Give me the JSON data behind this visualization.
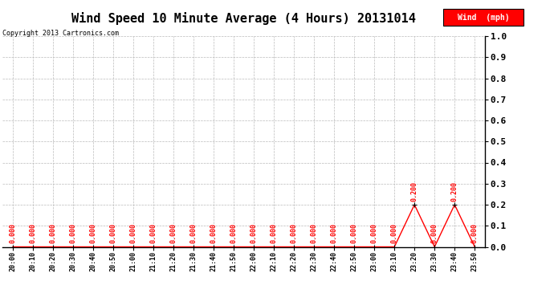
{
  "title": "Wind Speed 10 Minute Average (4 Hours) 20131014",
  "copyright_text": "Copyright 2013 Cartronics.com",
  "legend_label": "Wind  (mph)",
  "legend_bg": "#ff0000",
  "legend_fg": "#ffffff",
  "x_labels": [
    "20:00",
    "20:10",
    "20:20",
    "20:30",
    "20:40",
    "20:50",
    "21:00",
    "21:10",
    "21:20",
    "21:30",
    "21:40",
    "21:50",
    "22:00",
    "22:10",
    "22:20",
    "22:30",
    "22:40",
    "22:50",
    "23:00",
    "23:10",
    "23:20",
    "23:30",
    "23:40",
    "23:50"
  ],
  "y_values": [
    0.0,
    0.0,
    0.0,
    0.0,
    0.0,
    0.0,
    0.0,
    0.0,
    0.0,
    0.0,
    0.0,
    0.0,
    0.0,
    0.0,
    0.0,
    0.0,
    0.0,
    0.0,
    0.0,
    0.0,
    0.2,
    0.0,
    0.2,
    0.0
  ],
  "line_color": "#ff0000",
  "marker_color": "#000000",
  "annotation_color": "#ff0000",
  "ylim": [
    0.0,
    1.0
  ],
  "yticks": [
    0.0,
    0.1,
    0.2,
    0.3,
    0.4,
    0.5,
    0.6,
    0.7,
    0.8,
    0.9,
    1.0
  ],
  "bg_color": "#ffffff",
  "grid_color": "#bbbbbb",
  "title_fontsize": 11,
  "xlabel_fontsize": 6,
  "ylabel_fontsize": 8,
  "annot_fontsize": 6,
  "copyright_fontsize": 6,
  "legend_fontsize": 7
}
